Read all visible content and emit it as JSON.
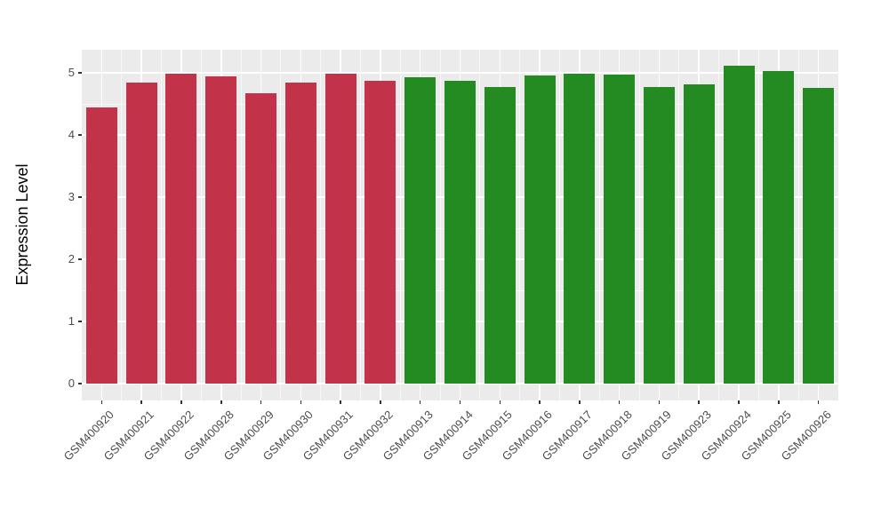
{
  "figure": {
    "background": "#ffffff"
  },
  "chart_data": {
    "type": "bar",
    "title": "",
    "xlabel": "",
    "ylabel": "Expression Level",
    "categories": [
      "GSM400920",
      "GSM400921",
      "GSM400922",
      "GSM400928",
      "GSM400929",
      "GSM400930",
      "GSM400931",
      "GSM400932",
      "GSM400913",
      "GSM400914",
      "GSM400915",
      "GSM400916",
      "GSM400917",
      "GSM400918",
      "GSM400919",
      "GSM400923",
      "GSM400924",
      "GSM400925",
      "GSM400926"
    ],
    "values": [
      4.44,
      4.85,
      4.99,
      4.95,
      4.67,
      4.84,
      4.99,
      4.87,
      4.93,
      4.87,
      4.77,
      4.96,
      4.99,
      4.97,
      4.77,
      4.81,
      5.11,
      5.03,
      4.76
    ],
    "group": [
      "red",
      "red",
      "red",
      "red",
      "red",
      "red",
      "red",
      "red",
      "green",
      "green",
      "green",
      "green",
      "green",
      "green",
      "green",
      "green",
      "green",
      "green",
      "green"
    ],
    "bar_colors": {
      "red": "#C2334A",
      "green": "#238B22"
    },
    "yticks": [
      0,
      1,
      2,
      3,
      4,
      5
    ],
    "ylim": [
      0,
      5.37
    ],
    "x_tick_angle": -45,
    "grid": true,
    "legend": false,
    "panel_background": "#EBEBEB",
    "grid_major_color": "#FFFFFF",
    "grid_minor_color": "#FFFFFF",
    "tick_label_color": "#4D4D4D",
    "axis_title_color": "#000000"
  }
}
